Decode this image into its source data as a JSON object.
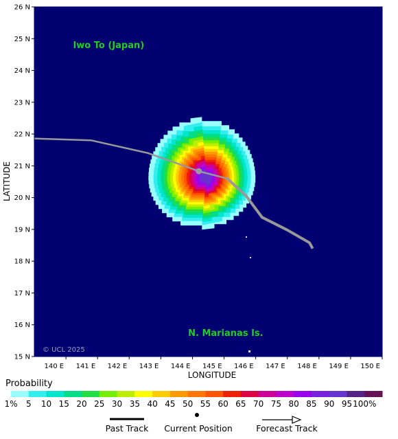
{
  "map": {
    "background": "#000070",
    "places": [
      {
        "name": "Iwo To (Japan)",
        "lon": 141.35,
        "lat": 24.7
      },
      {
        "name": "N. Marianas Is.",
        "lon": 145.05,
        "lat": 15.65
      }
    ],
    "copyright": "© UCL 2025",
    "x_axis": {
      "title": "LONGITUDE",
      "range": [
        139,
        150
      ],
      "ticks": [
        "140 E",
        "141 E",
        "142 E",
        "143 E",
        "144 E",
        "145 E",
        "146 E",
        "147 E",
        "148 E",
        "149 E",
        "150 E"
      ]
    },
    "y_axis": {
      "title": "LATITUDE",
      "range": [
        15,
        26
      ],
      "ticks": [
        "15 N",
        "16 N",
        "17 N",
        "18 N",
        "19 N",
        "20 N",
        "21 N",
        "22 N",
        "23 N",
        "24 N",
        "25 N",
        "26 N"
      ]
    },
    "track": {
      "color": "#999999",
      "points": [
        [
          139.0,
          21.86
        ],
        [
          140.8,
          21.8
        ],
        [
          142.6,
          21.4
        ],
        [
          144.2,
          20.83
        ],
        [
          145.1,
          20.6
        ],
        [
          145.7,
          20.05
        ],
        [
          146.2,
          19.38
        ],
        [
          147.0,
          18.98
        ],
        [
          147.7,
          18.58
        ],
        [
          147.8,
          18.4
        ]
      ],
      "current_position": {
        "lon": 144.2,
        "lat": 20.83
      }
    },
    "probability_field": {
      "center": {
        "lon": 144.3,
        "lat": 20.68
      },
      "max_probability": 90
    }
  },
  "legend": {
    "title": "Probability",
    "labels": [
      "1%",
      "5",
      "10",
      "15",
      "20",
      "25",
      "30",
      "35",
      "40",
      "45",
      "50",
      "55",
      "60",
      "65",
      "70",
      "75",
      "80",
      "85",
      "90",
      "95",
      "100%"
    ],
    "colors": [
      "#99ffff",
      "#33eeee",
      "#00e6cc",
      "#00dd88",
      "#22dd44",
      "#77ee00",
      "#bbee00",
      "#ffff00",
      "#ffcc00",
      "#ff9900",
      "#ff7700",
      "#ff5500",
      "#ee2200",
      "#dd0044",
      "#cc0099",
      "#bb00cc",
      "#9900ee",
      "#7722dd",
      "#6633cc",
      "#552288",
      "#661155"
    ],
    "keys": [
      "Past Track",
      "Current Position",
      "Forecast Track"
    ]
  }
}
